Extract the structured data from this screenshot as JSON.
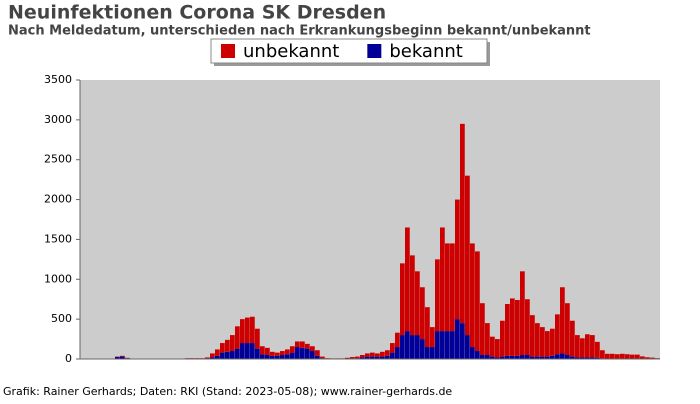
{
  "chart_data": {
    "type": "stacked-bar",
    "title": "Neuinfektionen Corona SK Dresden",
    "subtitle": "Nach Meldedatum, unterschieden nach Erkrankungsbeginn bekannt/unbekannt",
    "footer": "Grafik: Rainer Gerhards; Daten: RKI (Stand: 2023-05-08); www.rainer-gerhards.de",
    "categories": [
      null,
      null,
      null,
      null,
      null,
      null,
      null,
      null,
      null,
      null,
      null,
      null,
      null,
      null,
      null,
      null,
      null,
      null,
      null,
      null,
      null,
      null,
      null,
      null,
      null,
      null,
      null,
      null,
      null,
      null,
      null,
      null,
      null,
      null,
      null,
      null,
      null,
      null,
      null,
      null,
      null,
      null,
      null,
      null,
      null,
      null,
      null,
      null,
      null,
      null,
      null,
      null,
      null,
      null,
      null,
      null,
      null,
      null,
      null,
      null,
      null,
      null,
      null,
      null,
      null,
      null,
      null,
      null,
      null,
      null,
      null,
      null,
      null,
      null,
      null,
      null,
      null,
      null,
      null,
      null,
      null,
      null,
      null,
      null,
      null,
      null,
      null,
      null,
      null,
      null,
      null,
      null,
      null,
      null,
      null,
      null,
      null,
      null,
      null,
      null,
      null,
      null,
      null,
      null,
      null,
      null,
      null,
      null,
      null,
      null,
      null,
      null,
      null,
      null,
      null,
      null
    ],
    "series": [
      {
        "name": "unbekannt",
        "color": "#cc0000",
        "values": [
          0,
          0,
          0,
          0,
          0,
          0,
          0,
          5,
          10,
          5,
          3,
          2,
          1,
          1,
          1,
          1,
          1,
          1,
          2,
          2,
          2,
          5,
          5,
          5,
          5,
          10,
          50,
          80,
          120,
          150,
          200,
          280,
          300,
          320,
          330,
          250,
          100,
          90,
          50,
          40,
          50,
          60,
          80,
          70,
          80,
          60,
          60,
          70,
          20,
          5,
          5,
          5,
          5,
          10,
          15,
          20,
          30,
          40,
          50,
          40,
          60,
          70,
          120,
          180,
          900,
          1300,
          1000,
          800,
          650,
          500,
          250,
          900,
          1300,
          1100,
          1100,
          1500,
          2500,
          2000,
          1300,
          1250,
          650,
          400,
          250,
          230,
          450,
          650,
          720,
          700,
          1050,
          700,
          520,
          420,
          370,
          320,
          340,
          500,
          830,
          650,
          450,
          280,
          240,
          290,
          280,
          200,
          100,
          60,
          60,
          55,
          60,
          55,
          50,
          50,
          30,
          20,
          15,
          10
        ]
      },
      {
        "name": "bekannt",
        "color": "#000099",
        "values": [
          0,
          0,
          0,
          0,
          0,
          0,
          0,
          25,
          30,
          10,
          1,
          1,
          0,
          0,
          0,
          0,
          0,
          0,
          0,
          0,
          0,
          5,
          5,
          5,
          5,
          10,
          20,
          40,
          80,
          90,
          100,
          130,
          200,
          200,
          200,
          130,
          60,
          50,
          40,
          40,
          50,
          60,
          80,
          150,
          140,
          130,
          100,
          40,
          10,
          5,
          3,
          3,
          3,
          5,
          10,
          10,
          20,
          30,
          30,
          30,
          30,
          40,
          80,
          150,
          300,
          350,
          300,
          300,
          250,
          150,
          150,
          350,
          350,
          350,
          350,
          500,
          450,
          300,
          150,
          100,
          50,
          50,
          30,
          20,
          30,
          40,
          40,
          40,
          50,
          50,
          30,
          30,
          30,
          30,
          40,
          60,
          70,
          50,
          30,
          20,
          20,
          20,
          20,
          15,
          10,
          5,
          5,
          5,
          5,
          5,
          5,
          5,
          3,
          2,
          2,
          0
        ]
      }
    ],
    "ylim": [
      0,
      3500
    ],
    "yticks": [
      0,
      500,
      1000,
      1500,
      2000,
      2500,
      3000,
      3500
    ],
    "legend": "top"
  }
}
